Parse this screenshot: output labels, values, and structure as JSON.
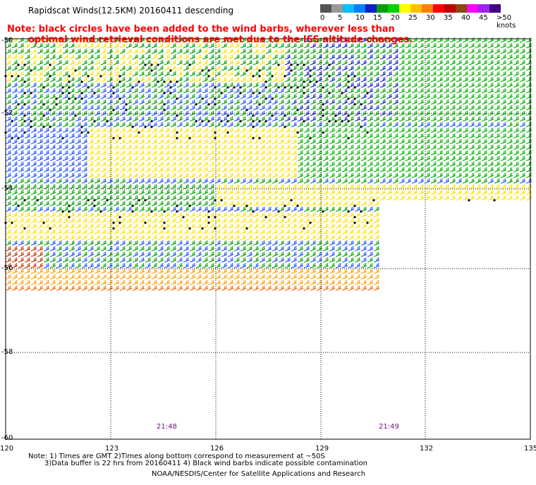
{
  "title": "Rapidscat Winds(12.5KM) 20160411 descending",
  "note_line1": "Note: black circles have been added to the wind barbs, wherever less than",
  "note_line2": "optimal wind retrieval conditions are met due to the ISS altitude changes.",
  "legend": {
    "labels": [
      "0",
      "5",
      "10",
      "15",
      "20",
      "25",
      "30",
      "35",
      "40",
      "45",
      ">50 knots"
    ],
    "colors": [
      "#555555",
      "#999999",
      "#00bfff",
      "#0080ff",
      "#1020c0",
      "#00a000",
      "#00d000",
      "#ffff00",
      "#ffc000",
      "#ff8000",
      "#ff0000",
      "#c00000",
      "#8b4513",
      "#ff00ff",
      "#a020f0",
      "#400080"
    ]
  },
  "lat_labels": [
    "-50",
    "-52",
    "-54",
    "-56",
    "-58",
    "-60"
  ],
  "lon_labels": [
    "120",
    "123",
    "126",
    "129",
    "132",
    "135"
  ],
  "time_labels": [
    "21:48",
    "21:49"
  ],
  "footnote_line1": "Note: 1) Times are GMT 2)Times along bottom correspond to measurement at ~50S",
  "footnote_line2": "3)Data buffer is 22 hrs from 20160411 4) Black wind barbs indicate possible contamination",
  "footer": "NOAA/NESDIS/Center for Satellite Applications and Research"
}
